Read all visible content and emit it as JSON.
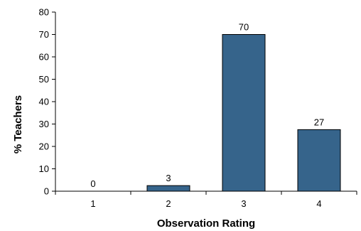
{
  "chart_data": {
    "type": "bar",
    "categories": [
      "1",
      "2",
      "3",
      "4"
    ],
    "values": [
      0,
      2.5,
      70,
      27.5
    ],
    "data_labels": [
      "0",
      "3",
      "70",
      "27"
    ],
    "xlabel": "Observation Rating",
    "ylabel": "% Teachers",
    "ylim": [
      0,
      80
    ],
    "yticks": [
      "0",
      "10",
      "20",
      "30",
      "40",
      "50",
      "60",
      "70",
      "80"
    ],
    "grid": false,
    "legend": "none",
    "bar_color": "#36648b"
  }
}
